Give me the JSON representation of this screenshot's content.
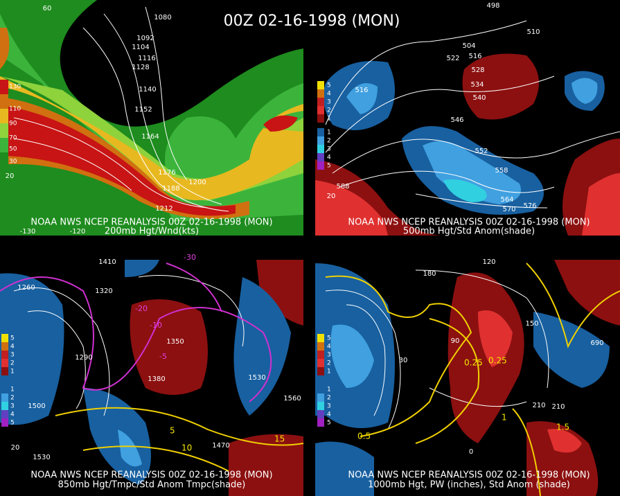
{
  "title": "00Z 02-16-1998 (MON)",
  "panels": [
    {
      "caption": "NOAA NWS NCEP REANALYSIS 00Z 02-16-1998 (MON)",
      "subtitle": "200mb Hgt/Wnd(kts)",
      "legend": [
        "130",
        "110",
        "90",
        "70",
        "50",
        "30"
      ],
      "labels": [
        "1080",
        "1092",
        "1104",
        "1116",
        "1128",
        "1140",
        "1152",
        "1164",
        "1176",
        "1188",
        "1200",
        "1212",
        "60",
        "-130",
        "-120",
        "20"
      ]
    },
    {
      "caption": "NOAA NWS NCEP REANALYSIS 00Z 02-16-1998 (MON)",
      "subtitle": "500mb Hgt/Std Anom(shade)",
      "legend": [
        "5",
        "4",
        "3",
        "2",
        "1",
        "1",
        "2",
        "3",
        "4",
        "5"
      ],
      "labels": [
        "498",
        "504",
        "510",
        "516",
        "522",
        "528",
        "534",
        "540",
        "546",
        "552",
        "558",
        "564",
        "570",
        "576",
        "588",
        "516",
        "20"
      ]
    },
    {
      "caption": "NOAA NWS NCEP REANALYSIS 00Z 02-16-1998 (MON)",
      "subtitle": "850mb Hgt/Tmpc/Std Anom Tmpc(shade)",
      "legend": [
        "5",
        "4",
        "3",
        "2",
        "1",
        "1",
        "2",
        "3",
        "4",
        "5"
      ],
      "labels": [
        "1260",
        "1290",
        "1320",
        "1350",
        "1380",
        "1410",
        "1500",
        "1530",
        "1560",
        "1470",
        "-30",
        "-20",
        "-10",
        "-5",
        "5",
        "10",
        "15",
        "20",
        "1530"
      ]
    },
    {
      "caption": "NOAA NWS NCEP REANALYSIS 00Z 02-16-1998 (MON)",
      "subtitle": "1000mb Hgt, PW (inches), Std Anom (shade)",
      "legend": [
        "5",
        "4",
        "3",
        "2",
        "1",
        "1",
        "2",
        "3",
        "4",
        "5"
      ],
      "labels": [
        "120",
        "150",
        "180",
        "210",
        "30",
        "0.25",
        "0.5",
        "1",
        "1.5",
        "690",
        "0",
        "90",
        "0.25",
        "210"
      ]
    }
  ]
}
